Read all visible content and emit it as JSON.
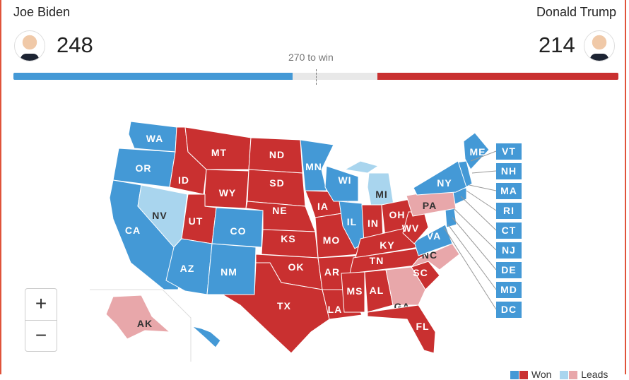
{
  "header": {
    "left": {
      "name": "Joe Biden",
      "votes": "248"
    },
    "right": {
      "name": "Donald Trump",
      "votes": "214"
    },
    "threshold": "270 to win",
    "biden_fraction": 0.461,
    "trump_fraction": 0.398
  },
  "colors": {
    "dem_won": "#4499d6",
    "rep_won": "#c93030",
    "dem_leads": "#a9d5ee",
    "rep_leads": "#e8a7aa"
  },
  "states": [
    {
      "code": "WA",
      "s": "dem_won"
    },
    {
      "code": "OR",
      "s": "dem_won"
    },
    {
      "code": "CA",
      "s": "dem_won"
    },
    {
      "code": "NV",
      "s": "dem_leads"
    },
    {
      "code": "ID",
      "s": "rep_won"
    },
    {
      "code": "MT",
      "s": "rep_won"
    },
    {
      "code": "WY",
      "s": "rep_won"
    },
    {
      "code": "UT",
      "s": "rep_won"
    },
    {
      "code": "CO",
      "s": "dem_won"
    },
    {
      "code": "AZ",
      "s": "dem_won"
    },
    {
      "code": "NM",
      "s": "dem_won"
    },
    {
      "code": "ND",
      "s": "rep_won"
    },
    {
      "code": "SD",
      "s": "rep_won"
    },
    {
      "code": "NE",
      "s": "rep_won"
    },
    {
      "code": "KS",
      "s": "rep_won"
    },
    {
      "code": "OK",
      "s": "rep_won"
    },
    {
      "code": "TX",
      "s": "rep_won"
    },
    {
      "code": "MN",
      "s": "dem_won"
    },
    {
      "code": "IA",
      "s": "rep_won"
    },
    {
      "code": "MO",
      "s": "rep_won"
    },
    {
      "code": "AR",
      "s": "rep_won"
    },
    {
      "code": "LA",
      "s": "rep_won"
    },
    {
      "code": "WI",
      "s": "dem_won"
    },
    {
      "code": "IL",
      "s": "dem_won"
    },
    {
      "code": "MI",
      "s": "dem_leads"
    },
    {
      "code": "IN",
      "s": "rep_won"
    },
    {
      "code": "OH",
      "s": "rep_won"
    },
    {
      "code": "KY",
      "s": "rep_won"
    },
    {
      "code": "TN",
      "s": "rep_won"
    },
    {
      "code": "MS",
      "s": "rep_won"
    },
    {
      "code": "AL",
      "s": "rep_won"
    },
    {
      "code": "GA",
      "s": "rep_leads"
    },
    {
      "code": "FL",
      "s": "rep_won"
    },
    {
      "code": "SC",
      "s": "rep_won"
    },
    {
      "code": "NC",
      "s": "rep_leads"
    },
    {
      "code": "VA",
      "s": "dem_won"
    },
    {
      "code": "WV",
      "s": "rep_won"
    },
    {
      "code": "PA",
      "s": "rep_leads"
    },
    {
      "code": "NY",
      "s": "dem_won"
    },
    {
      "code": "ME",
      "s": "dem_won"
    },
    {
      "code": "AK",
      "s": "rep_leads"
    },
    {
      "code": "HI",
      "s": "dem_won"
    }
  ],
  "small_states": [
    {
      "code": "VT"
    },
    {
      "code": "NH"
    },
    {
      "code": "MA"
    },
    {
      "code": "RI"
    },
    {
      "code": "CT"
    },
    {
      "code": "NJ"
    },
    {
      "code": "DE"
    },
    {
      "code": "MD"
    },
    {
      "code": "DC"
    }
  ],
  "zoom": {
    "in": "+",
    "out": "−"
  },
  "legend": {
    "won": "Won",
    "leads": "Leads"
  }
}
